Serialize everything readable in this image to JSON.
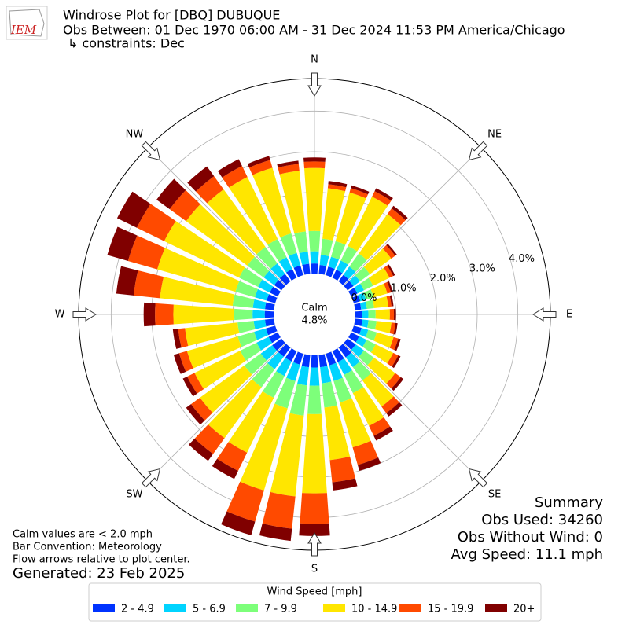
{
  "chart_data": {
    "type": "windrose",
    "title": "Windrose Plot for [DBQ] DUBUQUE",
    "subtitle": "Obs Between: 01 Dec 1970 06:00 AM - 31 Dec 2024 11:53 PM America/Chicago",
    "constraints": "↳ constraints: Dec",
    "logo_text": "IEM",
    "theta": [
      0,
      10,
      20,
      30,
      40,
      50,
      60,
      70,
      80,
      90,
      100,
      110,
      120,
      130,
      140,
      150,
      160,
      170,
      180,
      190,
      200,
      210,
      220,
      230,
      240,
      250,
      260,
      270,
      280,
      290,
      300,
      310,
      320,
      330,
      340,
      350
    ],
    "direction_ticks": [
      {
        "value": 0,
        "label": "N"
      },
      {
        "value": 45,
        "label": "NE"
      },
      {
        "value": 90,
        "label": "E"
      },
      {
        "value": 135,
        "label": "SE"
      },
      {
        "value": 180,
        "label": "S"
      },
      {
        "value": 225,
        "label": "SW"
      },
      {
        "value": 270,
        "label": "W"
      },
      {
        "value": 315,
        "label": "NW"
      }
    ],
    "ylim": [
      0,
      4.8
    ],
    "yticks": [
      {
        "value": 0,
        "label": "0.0%"
      },
      {
        "value": 1,
        "label": "1.0%"
      },
      {
        "value": 2,
        "label": "2.0%"
      },
      {
        "value": 3,
        "label": "3.0%"
      },
      {
        "value": 4,
        "label": "4.0%"
      }
    ],
    "grid": true,
    "calm": {
      "label": "Calm",
      "value": 4.8,
      "value_label": "4.8%"
    },
    "legend_title": "Wind Speed [mph]",
    "series": [
      {
        "name": "2 - 4.9",
        "color": "#0033ff",
        "values": [
          0.25,
          0.22,
          0.22,
          0.22,
          0.2,
          0.18,
          0.17,
          0.16,
          0.15,
          0.17,
          0.18,
          0.2,
          0.22,
          0.25,
          0.3,
          0.3,
          0.3,
          0.3,
          0.3,
          0.3,
          0.28,
          0.28,
          0.28,
          0.28,
          0.25,
          0.24,
          0.22,
          0.22,
          0.22,
          0.22,
          0.22,
          0.22,
          0.23,
          0.24,
          0.25,
          0.25
        ]
      },
      {
        "name": "5 - 6.9",
        "color": "#00d4ff",
        "values": [
          0.3,
          0.25,
          0.25,
          0.25,
          0.25,
          0.2,
          0.18,
          0.15,
          0.14,
          0.15,
          0.15,
          0.17,
          0.2,
          0.25,
          0.3,
          0.35,
          0.4,
          0.4,
          0.45,
          0.45,
          0.42,
          0.4,
          0.38,
          0.35,
          0.33,
          0.3,
          0.28,
          0.3,
          0.3,
          0.3,
          0.32,
          0.32,
          0.32,
          0.32,
          0.32,
          0.3
        ]
      },
      {
        "name": "7 - 9.9",
        "color": "#7dff7a",
        "values": [
          0.5,
          0.4,
          0.4,
          0.4,
          0.4,
          0.3,
          0.25,
          0.2,
          0.18,
          0.18,
          0.2,
          0.22,
          0.25,
          0.3,
          0.4,
          0.5,
          0.55,
          0.6,
          0.7,
          0.75,
          0.7,
          0.6,
          0.55,
          0.5,
          0.45,
          0.42,
          0.4,
          0.45,
          0.5,
          0.5,
          0.52,
          0.5,
          0.5,
          0.5,
          0.5,
          0.5
        ]
      },
      {
        "name": "10 - 14.9",
        "color": "#ffe600",
        "values": [
          1.55,
          1.25,
          1.25,
          1.35,
          1.2,
          0.65,
          0.45,
          0.35,
          0.35,
          0.35,
          0.37,
          0.43,
          0.48,
          0.65,
          0.8,
          0.9,
          1.15,
          1.3,
          1.95,
          2.0,
          2.1,
          1.5,
          1.55,
          1.35,
          1.25,
          1.3,
          1.3,
          1.5,
          1.8,
          2.0,
          2.05,
          1.86,
          1.75,
          1.7,
          1.68,
          1.5
        ]
      },
      {
        "name": "15 - 19.9",
        "color": "#ff4a00",
        "values": [
          0.16,
          0.1,
          0.11,
          0.15,
          0.17,
          0.12,
          0.1,
          0.09,
          0.08,
          0.1,
          0.1,
          0.12,
          0.14,
          0.17,
          0.2,
          0.27,
          0.45,
          0.55,
          0.75,
          0.8,
          0.8,
          0.5,
          0.48,
          0.27,
          0.2,
          0.2,
          0.17,
          0.45,
          0.65,
          0.75,
          0.75,
          0.5,
          0.4,
          0.3,
          0.2,
          0.17
        ]
      },
      {
        "name": "20+",
        "color": "#800000",
        "values": [
          0.1,
          0.08,
          0.07,
          0.08,
          0.08,
          0.05,
          0.05,
          0.05,
          0.05,
          0.05,
          0.05,
          0.06,
          0.06,
          0.08,
          0.1,
          0.13,
          0.15,
          0.2,
          0.3,
          0.3,
          0.35,
          0.22,
          0.21,
          0.15,
          0.12,
          0.14,
          0.13,
          0.28,
          0.43,
          0.53,
          0.54,
          0.4,
          0.3,
          0.19,
          0.1,
          0.08
        ]
      }
    ],
    "notes": [
      "Calm values are < 2.0 mph",
      "Bar Convention: Meteorology",
      "Flow arrows relative to plot center."
    ],
    "generated": "Generated: 23 Feb 2025",
    "summary": [
      "Summary",
      "Obs Used: 34260",
      "Obs Without Wind: 0",
      "Avg Speed: 11.1 mph"
    ]
  }
}
